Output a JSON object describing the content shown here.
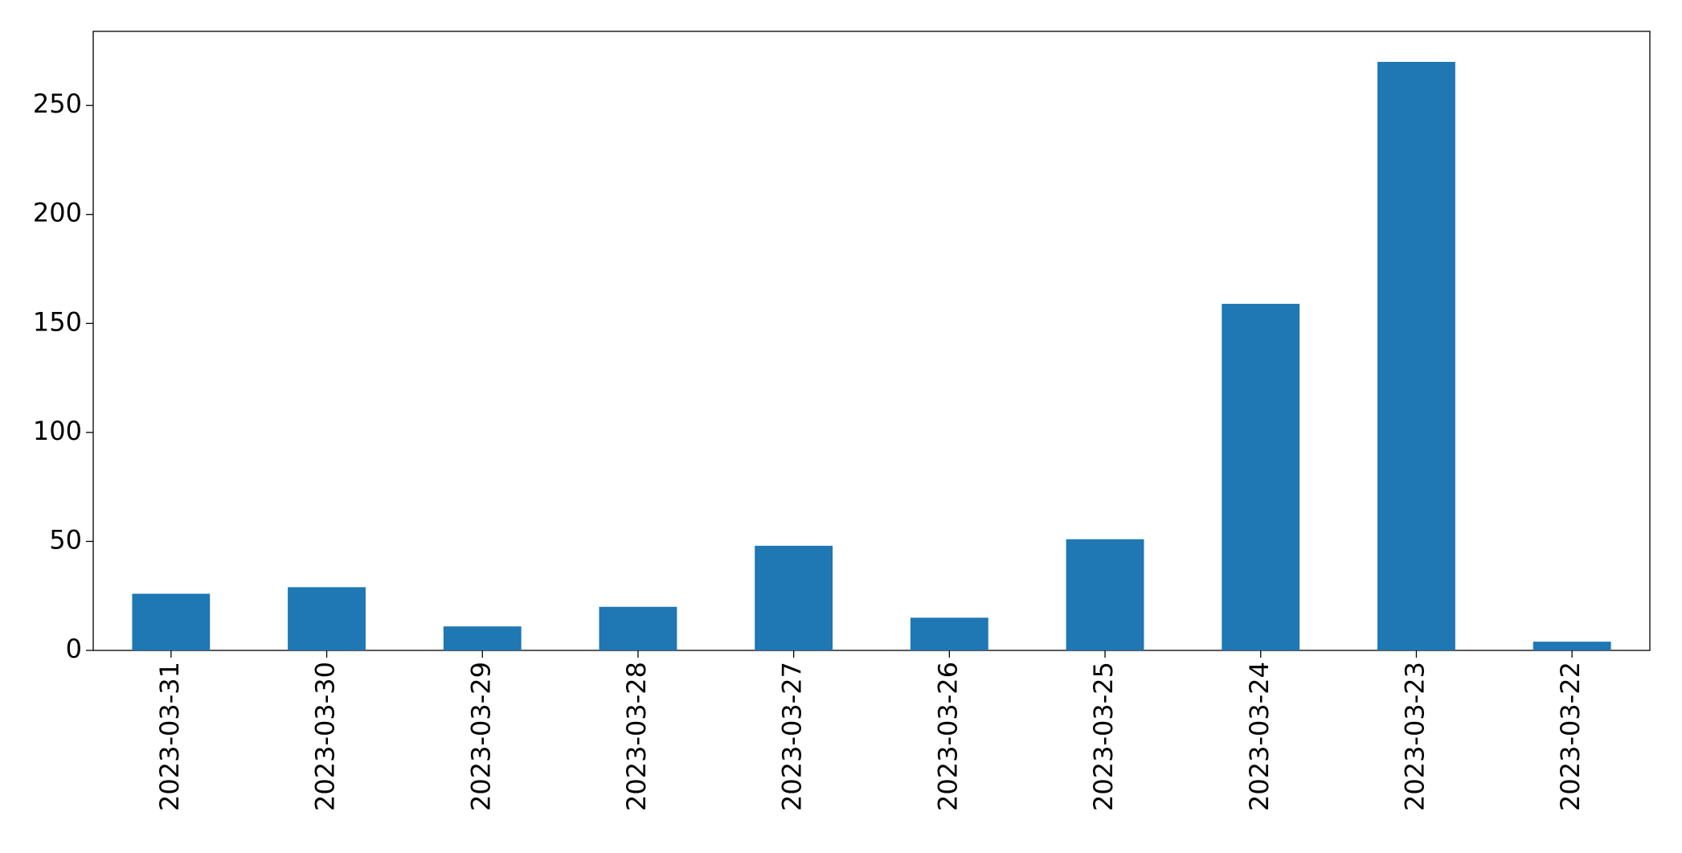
{
  "chart_data": {
    "type": "bar",
    "categories": [
      "2023-03-31",
      "2023-03-30",
      "2023-03-29",
      "2023-03-28",
      "2023-03-27",
      "2023-03-26",
      "2023-03-25",
      "2023-03-24",
      "2023-03-23",
      "2023-03-22"
    ],
    "values": [
      26,
      29,
      11,
      20,
      48,
      15,
      51,
      159,
      270,
      4
    ],
    "color": "#1f77b4",
    "ylim": [
      0,
      284
    ],
    "yticks": [
      0,
      50,
      100,
      150,
      200,
      250
    ],
    "grid": false
  }
}
